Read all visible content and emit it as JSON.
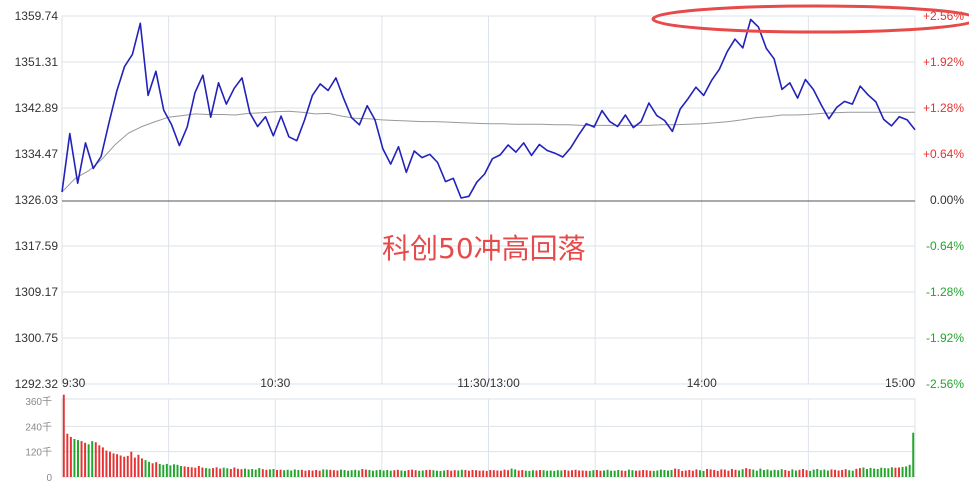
{
  "chart_data": {
    "type": "line",
    "title": "",
    "annotation": "科创50冲高回落",
    "x_tick_labels": [
      "9:30",
      "10:30",
      "11:30/13:00",
      "14:00",
      "15:00"
    ],
    "y_left_ticks": [
      "1359.74",
      "1351.31",
      "1342.89",
      "1334.47",
      "1326.03",
      "1317.59",
      "1309.17",
      "1300.75",
      "1292.32"
    ],
    "y_right_ticks": [
      "+2.56%",
      "+1.92%",
      "+1.28%",
      "+0.64%",
      "0.00%",
      "-0.64%",
      "-1.28%",
      "-1.92%",
      "-2.56%"
    ],
    "ylim": [
      1292.32,
      1359.74
    ],
    "prev_close": 1326.03,
    "series": [
      {
        "name": "",
        "color": "#2222bb",
        "values": [
          1327.5,
          1338.2,
          1329.1,
          1336.5,
          1331.8,
          1334.0,
          1340.2,
          1346.0,
          1350.5,
          1352.7,
          1358.4,
          1345.2,
          1349.6,
          1342.5,
          1339.8,
          1336.0,
          1339.4,
          1345.7,
          1348.9,
          1341.2,
          1347.5,
          1343.6,
          1346.5,
          1348.4,
          1342.0,
          1339.5,
          1341.3,
          1337.8,
          1341.4,
          1337.6,
          1336.9,
          1340.7,
          1345.2,
          1347.3,
          1346.1,
          1348.4,
          1344.6,
          1341.1,
          1339.8,
          1343.3,
          1340.7,
          1335.4,
          1332.6,
          1335.8,
          1331.1,
          1335.0,
          1333.8,
          1334.4,
          1332.9,
          1329.4,
          1330.0,
          1326.4,
          1326.7,
          1329.3,
          1330.8,
          1333.6,
          1334.3,
          1336.1,
          1334.8,
          1336.5,
          1334.2,
          1336.2,
          1335.1,
          1334.6,
          1333.9,
          1335.6,
          1337.9,
          1340.0,
          1339.4,
          1342.4,
          1340.4,
          1339.5,
          1341.6,
          1339.3,
          1340.4,
          1343.8,
          1341.5,
          1340.6,
          1338.6,
          1342.7,
          1344.6,
          1346.7,
          1345.2,
          1347.9,
          1350.0,
          1353.2,
          1355.5,
          1353.9,
          1359.1,
          1357.7,
          1353.8,
          1351.9,
          1346.3,
          1347.5,
          1344.7,
          1348.1,
          1346.3,
          1343.5,
          1340.9,
          1343.0,
          1344.1,
          1343.6,
          1346.9,
          1345.3,
          1344.0,
          1340.8,
          1339.6,
          1341.3,
          1340.7,
          1338.9
        ]
      },
      {
        "name": "",
        "color": "#999999",
        "values": [
          1327.5,
          1330.0,
          1331.4,
          1333.5,
          1336.2,
          1338.3,
          1339.5,
          1340.4,
          1341.2,
          1341.5,
          1341.8,
          1341.7,
          1341.7,
          1341.6,
          1341.9,
          1342.0,
          1342.2,
          1342.3,
          1342.1,
          1341.8,
          1341.9,
          1341.4,
          1341.0,
          1340.9,
          1340.7,
          1340.6,
          1340.5,
          1340.4,
          1340.4,
          1340.3,
          1340.2,
          1340.1,
          1340.0,
          1340.0,
          1339.9,
          1339.9,
          1339.9,
          1339.8,
          1339.8,
          1339.7,
          1339.7,
          1339.7,
          1339.7,
          1339.7,
          1339.7,
          1339.8,
          1339.8,
          1339.9,
          1340.0,
          1340.2,
          1340.4,
          1340.7,
          1341.1,
          1341.3,
          1341.6,
          1341.6,
          1341.7,
          1341.9,
          1342.0,
          1342.1,
          1342.1,
          1342.1,
          1342.1,
          1342.1,
          1342.1
        ]
      }
    ],
    "volume": {
      "ticks": [
        "360千",
        "240千",
        "120千",
        "0"
      ],
      "ylim": [
        0,
        360
      ],
      "values": [
        390,
        205,
        190,
        180,
        175,
        170,
        162,
        155,
        170,
        165,
        150,
        140,
        125,
        120,
        112,
        108,
        102,
        96,
        100,
        120,
        92,
        105,
        88,
        80,
        72,
        65,
        70,
        62,
        58,
        62,
        55,
        60,
        58,
        52,
        50,
        48,
        46,
        44,
        52,
        45,
        42,
        40,
        42,
        46,
        40,
        44,
        41,
        38,
        45,
        39,
        37,
        40,
        36,
        38,
        35,
        42,
        37,
        34,
        36,
        38,
        33,
        35,
        32,
        34,
        31,
        36,
        33,
        34,
        30,
        32,
        31,
        33,
        30,
        36,
        35,
        34,
        32,
        31,
        35,
        33,
        30,
        32,
        34,
        31,
        38,
        35,
        33,
        30,
        32,
        34,
        31,
        33,
        30,
        32,
        34,
        31,
        29,
        33,
        35,
        32,
        30,
        31,
        33,
        34,
        32,
        30,
        29,
        31,
        33,
        30,
        32,
        31,
        34,
        33,
        30,
        33,
        32,
        30,
        31,
        29,
        33,
        32,
        31,
        30,
        35,
        32,
        40,
        36,
        31,
        33,
        30,
        29,
        32,
        31,
        33,
        32,
        30,
        31,
        29,
        32,
        31,
        33,
        30,
        32,
        34,
        31,
        31,
        30,
        29,
        32,
        33,
        30,
        31,
        34,
        30,
        30,
        33,
        31,
        29,
        35,
        32,
        30,
        31,
        33,
        32,
        30,
        29,
        31,
        35,
        33,
        31,
        33,
        40,
        37,
        29,
        31,
        33,
        30,
        36,
        32,
        29,
        38,
        36,
        33,
        29,
        36,
        35,
        30,
        38,
        34,
        31,
        37,
        42,
        38,
        35,
        30,
        40,
        33,
        36,
        31,
        34,
        32,
        37,
        33,
        29,
        36,
        31,
        34,
        38,
        32,
        29,
        35,
        38,
        32,
        35,
        31,
        36,
        34,
        31,
        33,
        37,
        32,
        30,
        39,
        42,
        45,
        38,
        43,
        40,
        38,
        44,
        42,
        41,
        46,
        44,
        45,
        48,
        50,
        58,
        210
      ]
    },
    "colors": {
      "price_line": "#2222bb",
      "avg_line": "#999999",
      "up": "#e63232",
      "down": "#22a52b",
      "grid": "#dde3ea",
      "prev_close_line": "#555555",
      "annotation": "#e64a4a",
      "highlight_ellipse": "#e64a4a"
    },
    "grid": true,
    "legend": "none"
  }
}
